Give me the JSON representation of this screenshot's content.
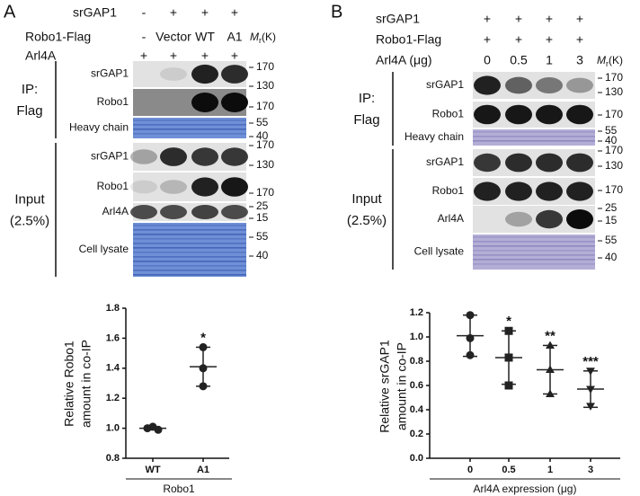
{
  "panels": [
    {
      "label": "A",
      "conditions": [
        {
          "name": "srGAP1",
          "values": [
            "-",
            "+",
            "+",
            "+"
          ]
        },
        {
          "name": "Robo1-Flag",
          "values": [
            "-",
            "Vector",
            "WT",
            "A1"
          ]
        },
        {
          "name": "Arl4A",
          "values": [
            "+",
            "+",
            "+",
            "+"
          ]
        }
      ],
      "mr": {
        "symbol": "M",
        "sub": "r",
        "unit": "(K)"
      },
      "groups": [
        {
          "label": [
            "IP:",
            "Flag"
          ],
          "rows": [
            {
              "name": "srGAP1",
              "markers": [
                "170",
                "130"
              ]
            },
            {
              "name": "Robo1",
              "markers": [
                "170"
              ]
            },
            {
              "name": "Heavy chain",
              "markers": [
                "55",
                "40"
              ]
            }
          ]
        },
        {
          "label": [
            "Input",
            "(2.5%)"
          ],
          "rows": [
            {
              "name": "srGAP1",
              "markers": [
                "170",
                "130"
              ]
            },
            {
              "name": "Robo1",
              "markers": [
                "170"
              ]
            },
            {
              "name": "Arl4A",
              "markers": [
                "25",
                "15"
              ]
            },
            {
              "name": "Cell lysate",
              "markers": [
                "55",
                "40"
              ]
            }
          ]
        }
      ]
    },
    {
      "label": "B",
      "conditions": [
        {
          "name": "srGAP1",
          "values": [
            "+",
            "+",
            "+",
            "+"
          ]
        },
        {
          "name": "Robo1-Flag",
          "values": [
            "+",
            "+",
            "+",
            "+"
          ]
        },
        {
          "name": "Arl4A (μg)",
          "values": [
            "0",
            "0.5",
            "1",
            "3"
          ]
        }
      ],
      "mr": {
        "symbol": "M",
        "sub": "r",
        "unit": "(K)"
      },
      "groups": [
        {
          "label": [
            "IP:",
            "Flag"
          ],
          "rows": [
            {
              "name": "srGAP1",
              "markers": [
                "170",
                "130"
              ]
            },
            {
              "name": "Robo1",
              "markers": [
                "170"
              ]
            },
            {
              "name": "Heavy chain",
              "markers": [
                "55",
                "40"
              ]
            }
          ]
        },
        {
          "label": [
            "Input",
            "(2.5%)"
          ],
          "rows": [
            {
              "name": "srGAP1",
              "markers": [
                "170",
                "130"
              ]
            },
            {
              "name": "Robo1",
              "markers": [
                "170"
              ]
            },
            {
              "name": "Arl4A",
              "markers": [
                "25",
                "15"
              ]
            },
            {
              "name": "Cell lysate",
              "markers": [
                "55",
                "40"
              ]
            }
          ]
        }
      ]
    }
  ],
  "chart_data": [
    {
      "type": "dot",
      "ylabel": [
        "Relative Robo1",
        "amount in co-IP"
      ],
      "categories": [
        "WT",
        "A1"
      ],
      "group_label": "Robo1",
      "points": [
        [
          1.0,
          1.01,
          0.99
        ],
        [
          1.54,
          1.4,
          1.28
        ]
      ],
      "means": [
        1.0,
        1.41
      ],
      "errors": [
        0.01,
        0.13
      ],
      "markers": [
        "circle",
        "circle"
      ],
      "annotations": [
        null,
        "*"
      ],
      "color": "#222222",
      "ylim": [
        0.8,
        1.8
      ],
      "yticks": [
        0.8,
        {
          "value": 1,
          "label": "1.0"
        },
        1.2,
        1.4,
        1.6,
        1.8
      ]
    },
    {
      "type": "dot",
      "ylabel": [
        "Relative srGAP1",
        "amount in co-IP"
      ],
      "categories": [
        "0",
        "0.5",
        "1",
        "3"
      ],
      "group_label": "Arl4A expression (μg)",
      "points": [
        [
          1.18,
          0.99,
          0.85
        ],
        [
          1.05,
          0.83,
          0.6
        ],
        [
          0.93,
          0.73,
          0.53
        ],
        [
          0.72,
          0.57,
          0.43
        ]
      ],
      "means": [
        1.01,
        0.83,
        0.73,
        0.57
      ],
      "errors": [
        0.17,
        0.22,
        0.2,
        0.15
      ],
      "markers": [
        "circle",
        "square",
        "triangle",
        "triangle-down"
      ],
      "annotations": [
        null,
        "*",
        "**",
        "***"
      ],
      "color": "#222222",
      "ylim": [
        0,
        1.2
      ],
      "yticks": [
        {
          "value": 0,
          "label": "0.0"
        },
        0.2,
        0.4,
        0.6,
        0.8,
        {
          "value": 1,
          "label": "1.0"
        },
        1.2
      ]
    }
  ]
}
